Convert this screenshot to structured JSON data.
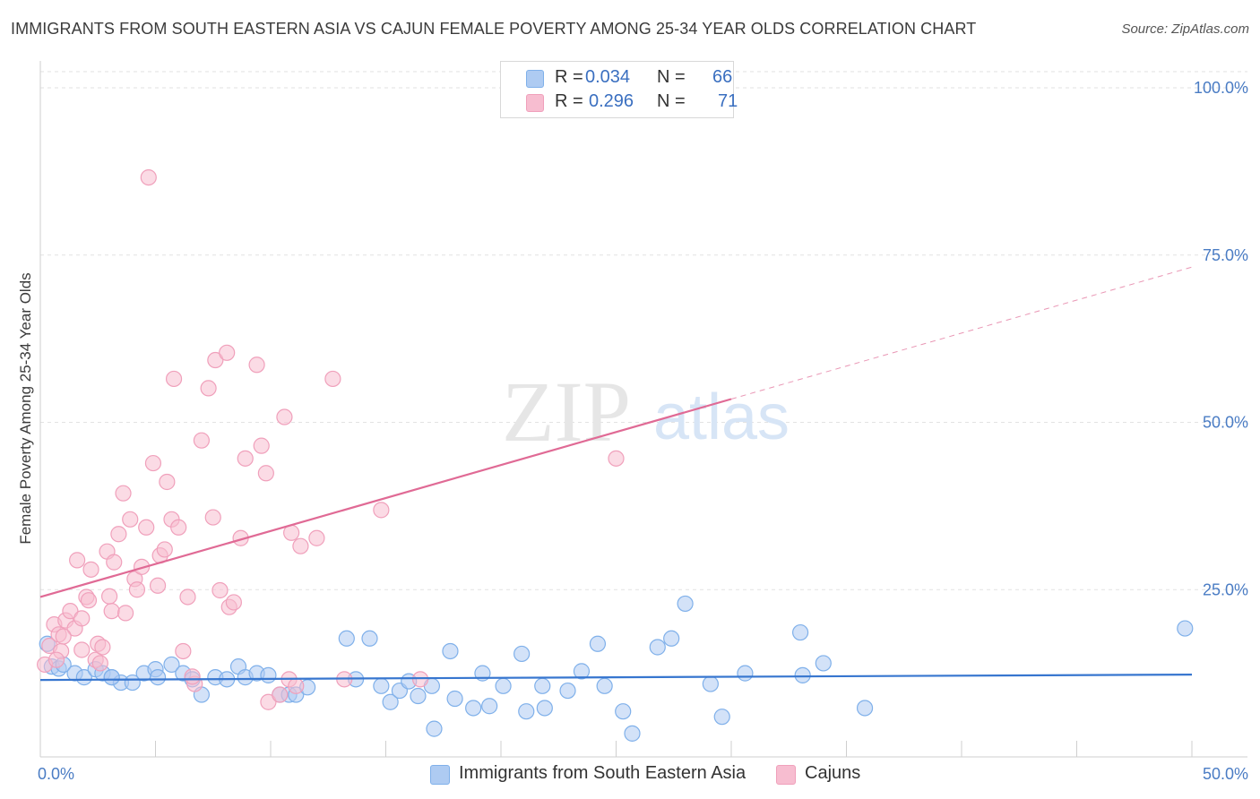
{
  "header": {
    "title": "IMMIGRANTS FROM SOUTH EASTERN ASIA VS CAJUN FEMALE POVERTY AMONG 25-34 YEAR OLDS CORRELATION CHART",
    "source": "Source: ZipAtlas.com"
  },
  "watermark": {
    "zip": "ZIP",
    "atlas": "atlas"
  },
  "legend": {
    "rows": [
      {
        "r_label": "R =",
        "r_value": "0.034",
        "n_label": "N =",
        "n_value": "66",
        "color": "#aecbf2"
      },
      {
        "r_label": "R =",
        "r_value": "0.296",
        "n_label": "N =",
        "n_value": "71",
        "color": "#f7bdd0"
      }
    ]
  },
  "bottom_legend": [
    {
      "label": "Immigrants from South Eastern Asia",
      "color": "#aecbf2"
    },
    {
      "label": "Cajuns",
      "color": "#f7bdd0"
    }
  ],
  "chart_data": {
    "type": "scatter",
    "ylabel": "Female Poverty Among 25-34 Year Olds",
    "xlim": [
      0,
      50
    ],
    "ylim": [
      0,
      100
    ],
    "x_tick_labels": [
      {
        "value": 0,
        "label": "0.0%"
      },
      {
        "value": 50,
        "label": "50.0%"
      }
    ],
    "y_tick_labels": [
      {
        "value": 25,
        "label": "25.0%"
      },
      {
        "value": 50,
        "label": "50.0%"
      },
      {
        "value": 75,
        "label": "75.0%"
      },
      {
        "value": 100,
        "label": "100.0%"
      }
    ],
    "grid": true,
    "legend_position": "top-center",
    "series": [
      {
        "name": "Immigrants from South Eastern Asia",
        "color": "#7fb0ea",
        "trend": {
          "x": [
            0,
            50
          ],
          "y": [
            11.5,
            12.3
          ],
          "solid_to": 50
        },
        "points": [
          [
            0.3,
            16.9
          ],
          [
            0.5,
            13.5
          ],
          [
            0.8,
            13.2
          ],
          [
            1.0,
            13.8
          ],
          [
            1.5,
            12.5
          ],
          [
            1.9,
            11.9
          ],
          [
            2.4,
            13.1
          ],
          [
            2.7,
            12.5
          ],
          [
            3.1,
            11.9
          ],
          [
            3.5,
            11.1
          ],
          [
            4.0,
            11.1
          ],
          [
            4.5,
            12.5
          ],
          [
            5.0,
            13.1
          ],
          [
            5.1,
            11.9
          ],
          [
            5.7,
            13.8
          ],
          [
            6.2,
            12.5
          ],
          [
            6.6,
            11.6
          ],
          [
            7.0,
            9.3
          ],
          [
            7.6,
            11.9
          ],
          [
            8.1,
            11.6
          ],
          [
            8.6,
            13.5
          ],
          [
            8.9,
            11.9
          ],
          [
            9.4,
            12.5
          ],
          [
            9.9,
            12.2
          ],
          [
            10.4,
            9.3
          ],
          [
            10.8,
            9.3
          ],
          [
            11.1,
            9.3
          ],
          [
            11.6,
            10.4
          ],
          [
            13.3,
            17.7
          ],
          [
            13.7,
            11.6
          ],
          [
            14.3,
            17.7
          ],
          [
            14.8,
            10.6
          ],
          [
            15.2,
            8.2
          ],
          [
            15.6,
            9.9
          ],
          [
            16.0,
            11.3
          ],
          [
            16.4,
            9.1
          ],
          [
            17.0,
            10.6
          ],
          [
            17.1,
            4.2
          ],
          [
            17.8,
            15.8
          ],
          [
            18.0,
            8.7
          ],
          [
            18.8,
            7.3
          ],
          [
            19.2,
            12.5
          ],
          [
            19.5,
            7.6
          ],
          [
            20.1,
            10.6
          ],
          [
            20.9,
            15.4
          ],
          [
            21.1,
            6.8
          ],
          [
            21.8,
            10.6
          ],
          [
            21.9,
            7.3
          ],
          [
            22.9,
            9.9
          ],
          [
            23.5,
            12.8
          ],
          [
            24.2,
            16.9
          ],
          [
            24.5,
            10.6
          ],
          [
            25.3,
            6.8
          ],
          [
            25.7,
            3.5
          ],
          [
            26.8,
            16.4
          ],
          [
            27.4,
            17.7
          ],
          [
            28.0,
            22.9
          ],
          [
            29.1,
            10.9
          ],
          [
            29.6,
            6.0
          ],
          [
            30.6,
            12.5
          ],
          [
            33.0,
            18.6
          ],
          [
            33.1,
            12.2
          ],
          [
            34.0,
            14.0
          ],
          [
            35.8,
            7.3
          ],
          [
            49.7,
            19.2
          ],
          [
            3.1,
            11.9
          ]
        ]
      },
      {
        "name": "Cajuns",
        "color": "#f0a0bb",
        "trend": {
          "x": [
            0,
            50
          ],
          "y": [
            23.9,
            73.2
          ],
          "solid_to": 30
        },
        "points": [
          [
            0.2,
            13.8
          ],
          [
            0.4,
            16.6
          ],
          [
            0.6,
            19.8
          ],
          [
            0.8,
            18.3
          ],
          [
            0.9,
            15.8
          ],
          [
            1.1,
            20.4
          ],
          [
            1.3,
            21.8
          ],
          [
            1.5,
            19.2
          ],
          [
            1.6,
            29.4
          ],
          [
            1.8,
            20.7
          ],
          [
            2.0,
            23.9
          ],
          [
            2.1,
            23.4
          ],
          [
            2.2,
            28.0
          ],
          [
            2.4,
            14.5
          ],
          [
            2.5,
            16.9
          ],
          [
            2.7,
            16.4
          ],
          [
            2.9,
            30.7
          ],
          [
            3.1,
            21.8
          ],
          [
            3.2,
            29.1
          ],
          [
            3.4,
            33.3
          ],
          [
            3.6,
            39.4
          ],
          [
            3.7,
            21.5
          ],
          [
            3.9,
            35.5
          ],
          [
            4.1,
            26.6
          ],
          [
            4.2,
            25.0
          ],
          [
            4.4,
            28.4
          ],
          [
            4.6,
            34.3
          ],
          [
            4.7,
            86.6
          ],
          [
            4.9,
            43.9
          ],
          [
            5.1,
            25.6
          ],
          [
            5.2,
            30.1
          ],
          [
            5.4,
            31.0
          ],
          [
            5.5,
            41.1
          ],
          [
            5.7,
            35.5
          ],
          [
            5.8,
            56.5
          ],
          [
            6.0,
            34.3
          ],
          [
            6.2,
            15.8
          ],
          [
            6.4,
            23.9
          ],
          [
            6.7,
            10.9
          ],
          [
            7.0,
            47.3
          ],
          [
            7.3,
            55.1
          ],
          [
            7.5,
            35.8
          ],
          [
            7.6,
            59.3
          ],
          [
            7.8,
            24.9
          ],
          [
            8.1,
            60.4
          ],
          [
            8.2,
            22.4
          ],
          [
            8.4,
            23.1
          ],
          [
            8.7,
            32.7
          ],
          [
            8.9,
            44.6
          ],
          [
            9.4,
            58.6
          ],
          [
            9.6,
            46.5
          ],
          [
            9.8,
            42.4
          ],
          [
            9.9,
            8.2
          ],
          [
            10.4,
            9.3
          ],
          [
            10.6,
            50.8
          ],
          [
            10.8,
            11.6
          ],
          [
            10.9,
            33.5
          ],
          [
            11.1,
            10.6
          ],
          [
            11.3,
            31.5
          ],
          [
            12.0,
            32.7
          ],
          [
            12.7,
            56.5
          ],
          [
            13.2,
            11.6
          ],
          [
            14.8,
            36.9
          ],
          [
            16.5,
            11.6
          ],
          [
            25.0,
            44.6
          ],
          [
            1.0,
            18.0
          ],
          [
            2.6,
            14.0
          ],
          [
            3.0,
            24.0
          ],
          [
            6.6,
            12.0
          ],
          [
            1.8,
            16.0
          ],
          [
            0.7,
            14.5
          ]
        ]
      }
    ]
  }
}
